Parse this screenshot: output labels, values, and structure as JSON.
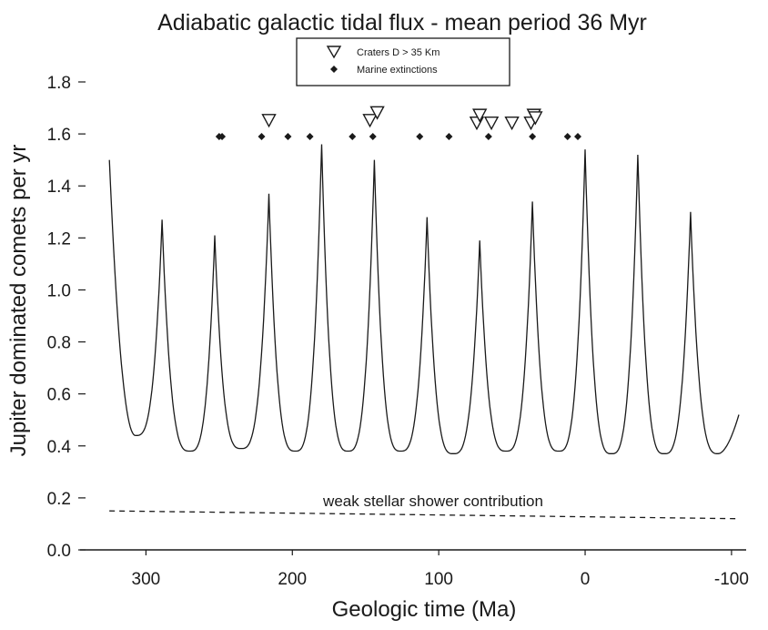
{
  "chart_data": {
    "type": "line",
    "title": "Adiabatic galactic tidal flux - mean period 36 Myr",
    "xlabel": "Geologic time (Ma)",
    "ylabel": "Jupiter dominated comets per yr",
    "xlim": [
      345,
      -110
    ],
    "ylim": [
      0.0,
      1.8
    ],
    "x_ticks": [
      300,
      200,
      100,
      0,
      -100
    ],
    "x_tick_labels": [
      "300",
      "200",
      "100",
      "0",
      "-100"
    ],
    "y_ticks": [
      0.0,
      0.2,
      0.4,
      0.6,
      0.8,
      1.0,
      1.2,
      1.4,
      1.6,
      1.8
    ],
    "y_tick_labels": [
      "0.0",
      "0.2",
      "0.4",
      "0.6",
      "0.8",
      "1.0",
      "1.2",
      "1.4",
      "1.6",
      "1.8"
    ],
    "grid": false,
    "legend": {
      "position": "top-center",
      "entries": [
        {
          "label": "Craters D > 35 Km",
          "marker": "open-triangle-down"
        },
        {
          "label": "Marine extinctions",
          "marker": "filled-diamond"
        }
      ]
    },
    "series": [
      {
        "name": "",
        "style": "solid",
        "baseline_minima": [
          {
            "x": 325,
            "y": 1.5
          },
          {
            "x": 307,
            "y": 0.44
          },
          {
            "x": 270,
            "y": 0.38
          },
          {
            "x": 235,
            "y": 0.39
          },
          {
            "x": 198,
            "y": 0.38
          },
          {
            "x": 162,
            "y": 0.38
          },
          {
            "x": 126,
            "y": 0.38
          },
          {
            "x": 90,
            "y": 0.37
          },
          {
            "x": 54,
            "y": 0.38
          },
          {
            "x": 18,
            "y": 0.38
          },
          {
            "x": -18,
            "y": 0.37
          },
          {
            "x": -54,
            "y": 0.37
          },
          {
            "x": -91,
            "y": 0.37
          },
          {
            "x": -105,
            "y": 0.52
          }
        ],
        "peaks": [
          {
            "x": 289,
            "y": 1.27
          },
          {
            "x": 253,
            "y": 1.21
          },
          {
            "x": 216,
            "y": 1.37
          },
          {
            "x": 180,
            "y": 1.56
          },
          {
            "x": 144,
            "y": 1.5
          },
          {
            "x": 108,
            "y": 1.28
          },
          {
            "x": 72,
            "y": 1.19
          },
          {
            "x": 36,
            "y": 1.34
          },
          {
            "x": 0,
            "y": 1.54
          },
          {
            "x": -36,
            "y": 1.52
          },
          {
            "x": -72,
            "y": 1.3
          }
        ]
      },
      {
        "name": "weak stellar shower contribution",
        "style": "dashed",
        "x": [
          325,
          -105
        ],
        "y": [
          0.15,
          0.12
        ]
      }
    ],
    "craters": [
      {
        "x": 216,
        "y": 1.65
      },
      {
        "x": 147,
        "y": 1.65
      },
      {
        "x": 142,
        "y": 1.68
      },
      {
        "x": 74,
        "y": 1.64
      },
      {
        "x": 72,
        "y": 1.67
      },
      {
        "x": 64,
        "y": 1.64
      },
      {
        "x": 50,
        "y": 1.64
      },
      {
        "x": 37,
        "y": 1.64
      },
      {
        "x": 35,
        "y": 1.67
      },
      {
        "x": 34,
        "y": 1.66
      }
    ],
    "extinctions": [
      {
        "x": 250,
        "y": 1.59
      },
      {
        "x": 248,
        "y": 1.59
      },
      {
        "x": 221,
        "y": 1.59
      },
      {
        "x": 203,
        "y": 1.59
      },
      {
        "x": 188,
        "y": 1.59
      },
      {
        "x": 159,
        "y": 1.59
      },
      {
        "x": 145,
        "y": 1.59
      },
      {
        "x": 113,
        "y": 1.59
      },
      {
        "x": 93,
        "y": 1.59
      },
      {
        "x": 66,
        "y": 1.59
      },
      {
        "x": 36,
        "y": 1.59
      },
      {
        "x": 12,
        "y": 1.59
      },
      {
        "x": 5,
        "y": 1.59
      }
    ],
    "annotations": [
      {
        "text": "weak stellar shower contribution"
      }
    ]
  }
}
